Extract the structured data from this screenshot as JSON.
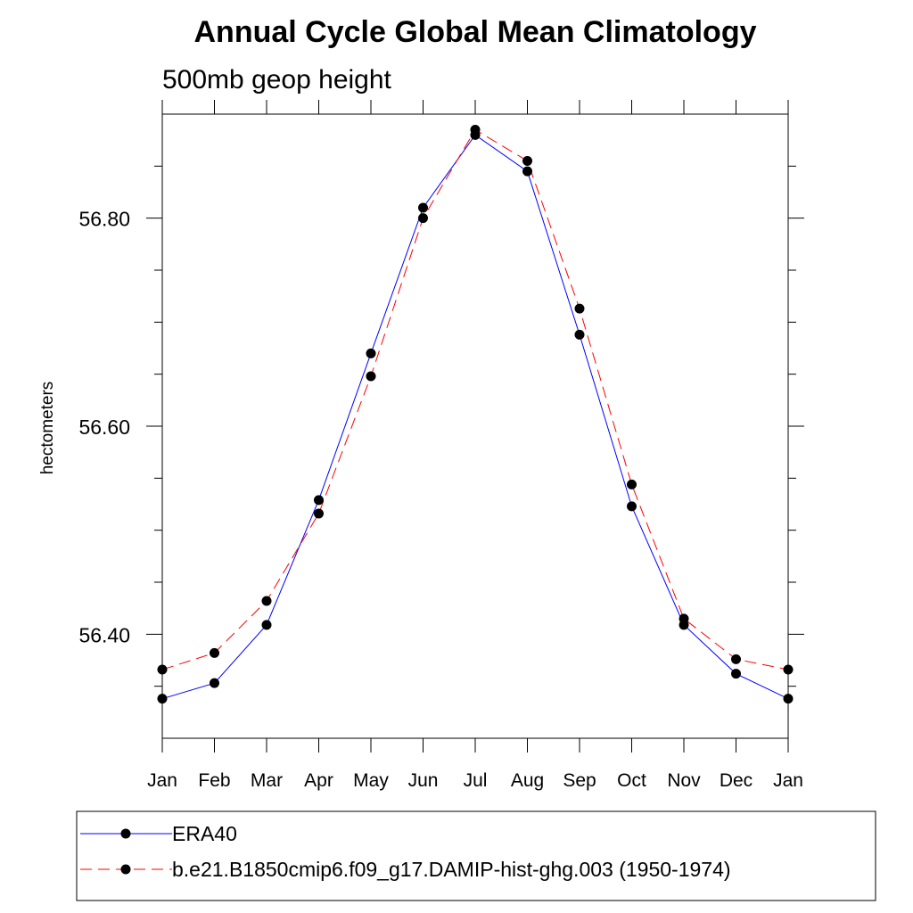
{
  "chart_data": {
    "type": "line",
    "title": "Annual Cycle Global Mean Climatology",
    "subtitle": "500mb geop height",
    "ylabel": "hectometers",
    "xlabel": "",
    "categories": [
      "Jan",
      "Feb",
      "Mar",
      "Apr",
      "May",
      "Jun",
      "Jul",
      "Aug",
      "Sep",
      "Oct",
      "Nov",
      "Dec",
      "Jan"
    ],
    "ylim": [
      56.3,
      56.9
    ],
    "yticks_major": [
      56.4,
      56.6,
      56.8
    ],
    "ytick_labels": [
      "56.40",
      "56.60",
      "56.80"
    ],
    "series": [
      {
        "name": "ERA40",
        "color": "#0000ff",
        "dash": "solid",
        "marker": "circle",
        "values": [
          56.338,
          56.353,
          56.409,
          56.529,
          56.67,
          56.81,
          56.88,
          56.845,
          56.688,
          56.523,
          56.409,
          56.362,
          56.338
        ]
      },
      {
        "name": "b.e21.B1850cmip6.f09_g17.DAMIP-hist-ghg.003 (1950-1974)",
        "color": "#ff0000",
        "dash": "dashed",
        "marker": "circle",
        "values": [
          56.366,
          56.382,
          56.432,
          56.516,
          56.648,
          56.8,
          56.885,
          56.855,
          56.713,
          56.544,
          56.415,
          56.376,
          56.366
        ]
      }
    ],
    "legend_position": "bottom",
    "grid": false
  }
}
